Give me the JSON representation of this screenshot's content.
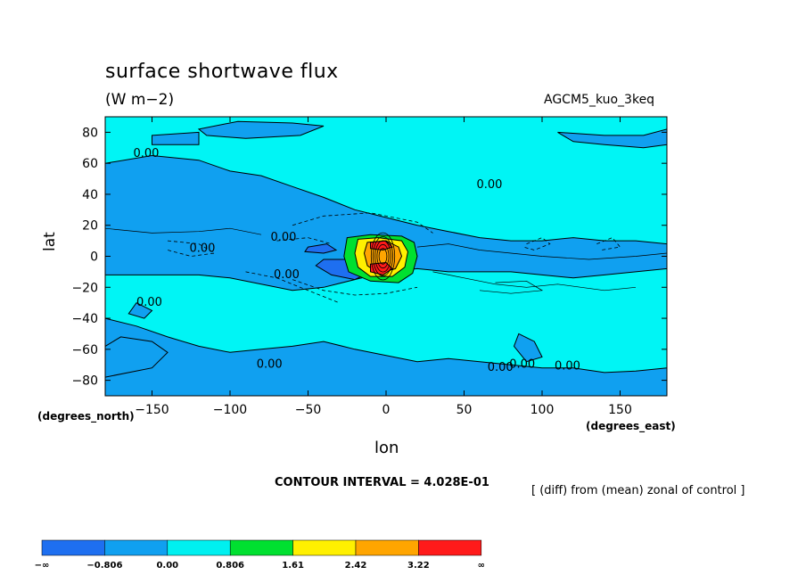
{
  "chart_data": {
    "type": "contour",
    "title": "surface shortwave flux",
    "units": "(W m−2)",
    "run_name": "AGCM5_kuo_3keq",
    "xlabel": "lon",
    "ylabel": "lat",
    "x_axis_note": "(degrees_east)",
    "y_axis_note": "(degrees_north)",
    "xlim": [
      -180,
      180
    ],
    "ylim": [
      -90,
      90
    ],
    "x_ticks": [
      -150,
      -100,
      -50,
      0,
      50,
      100,
      150
    ],
    "y_ticks": [
      -80,
      -60,
      -40,
      -20,
      0,
      20,
      40,
      60,
      80
    ],
    "contour_interval_text": "CONTOUR INTERVAL = 4.028E-01",
    "description_text": "[ (diff) from (mean) zonal of control ]",
    "contour_labels": [
      "0.00",
      "0.00",
      "0.00",
      "0.00",
      "0.00",
      "0.00",
      "0.00",
      "0.00",
      "0.00",
      "0.00"
    ],
    "colorbar": {
      "boundaries": [
        "−∞",
        "−0.806",
        "0.00",
        "0.806",
        "1.61",
        "2.42",
        "3.22",
        "∞"
      ],
      "colors": [
        "#1e6ff0",
        "#10a0f0",
        "#00f0f0",
        "#00e030",
        "#fff000",
        "#ffa500",
        "#ff1a1a"
      ]
    },
    "field_colors": {
      "background": "#00f5f5",
      "negative": "#10a0f0",
      "strong_negative": "#1e6ff0",
      "green": "#00e030",
      "yellow": "#fff000",
      "orange": "#ffa500",
      "red": "#ff1a1a"
    },
    "regions": [
      {
        "level": "negative",
        "points": [
          [
            -180,
            60
          ],
          [
            -150,
            65
          ],
          [
            -120,
            62
          ],
          [
            -100,
            55
          ],
          [
            -80,
            52
          ],
          [
            -60,
            45
          ],
          [
            -40,
            38
          ],
          [
            -20,
            30
          ],
          [
            0,
            25
          ],
          [
            20,
            20
          ],
          [
            40,
            16
          ],
          [
            60,
            12
          ],
          [
            80,
            10
          ],
          [
            100,
            10
          ],
          [
            120,
            12
          ],
          [
            140,
            10
          ],
          [
            160,
            10
          ],
          [
            180,
            8
          ],
          [
            180,
            -8
          ],
          [
            160,
            -10
          ],
          [
            140,
            -12
          ],
          [
            120,
            -14
          ],
          [
            100,
            -12
          ],
          [
            80,
            -10
          ],
          [
            60,
            -10
          ],
          [
            40,
            -10
          ],
          [
            20,
            -8
          ],
          [
            0,
            -10
          ],
          [
            -20,
            -15
          ],
          [
            -40,
            -20
          ],
          [
            -60,
            -22
          ],
          [
            -80,
            -18
          ],
          [
            -100,
            -14
          ],
          [
            -120,
            -12
          ],
          [
            -150,
            -12
          ],
          [
            -180,
            -12
          ]
        ]
      },
      {
        "level": "negative",
        "points": [
          [
            -180,
            -40
          ],
          [
            -160,
            -45
          ],
          [
            -140,
            -52
          ],
          [
            -120,
            -58
          ],
          [
            -100,
            -62
          ],
          [
            -80,
            -60
          ],
          [
            -60,
            -58
          ],
          [
            -40,
            -55
          ],
          [
            -20,
            -60
          ],
          [
            0,
            -64
          ],
          [
            20,
            -68
          ],
          [
            40,
            -66
          ],
          [
            60,
            -68
          ],
          [
            80,
            -70
          ],
          [
            100,
            -72
          ],
          [
            120,
            -72
          ],
          [
            140,
            -75
          ],
          [
            160,
            -74
          ],
          [
            180,
            -72
          ],
          [
            180,
            -90
          ],
          [
            -180,
            -90
          ]
        ]
      },
      {
        "level": "negative",
        "points": [
          [
            -180,
            -58
          ],
          [
            -170,
            -52
          ],
          [
            -150,
            -55
          ],
          [
            -140,
            -62
          ],
          [
            -150,
            -72
          ],
          [
            -180,
            -78
          ]
        ]
      },
      {
        "level": "negative",
        "points": [
          [
            -120,
            82
          ],
          [
            -95,
            87
          ],
          [
            -60,
            86
          ],
          [
            -40,
            84
          ],
          [
            -55,
            78
          ],
          [
            -90,
            76
          ],
          [
            -115,
            78
          ]
        ]
      },
      {
        "level": "negative",
        "points": [
          [
            110,
            80
          ],
          [
            140,
            78
          ],
          [
            165,
            78
          ],
          [
            180,
            82
          ],
          [
            180,
            72
          ],
          [
            165,
            70
          ],
          [
            140,
            72
          ],
          [
            120,
            74
          ]
        ]
      },
      {
        "level": "negative",
        "points": [
          [
            -150,
            78
          ],
          [
            -120,
            80
          ],
          [
            -120,
            72
          ],
          [
            -150,
            72
          ]
        ]
      },
      {
        "level": "negative",
        "points": [
          [
            85,
            -50
          ],
          [
            95,
            -55
          ],
          [
            100,
            -65
          ],
          [
            90,
            -68
          ],
          [
            82,
            -58
          ]
        ]
      },
      {
        "level": "negative",
        "points": [
          [
            -160,
            -30
          ],
          [
            -150,
            -35
          ],
          [
            -155,
            -40
          ],
          [
            -165,
            -37
          ]
        ]
      },
      {
        "level": "strong_negative",
        "points": [
          [
            -40,
            -2
          ],
          [
            -25,
            -2
          ],
          [
            -15,
            -4
          ],
          [
            -10,
            -10
          ],
          [
            -20,
            -15
          ],
          [
            -35,
            -12
          ],
          [
            -45,
            -6
          ]
        ]
      },
      {
        "level": "strong_negative",
        "points": [
          [
            -50,
            6
          ],
          [
            -38,
            8
          ],
          [
            -32,
            4
          ],
          [
            -40,
            2
          ],
          [
            -52,
            3
          ]
        ]
      },
      {
        "level": "green",
        "points": [
          [
            -25,
            12
          ],
          [
            -10,
            14
          ],
          [
            10,
            13
          ],
          [
            18,
            9
          ],
          [
            20,
            0
          ],
          [
            17,
            -11
          ],
          [
            8,
            -17
          ],
          [
            -10,
            -16
          ],
          [
            -24,
            -10
          ],
          [
            -27,
            0
          ]
        ]
      },
      {
        "level": "yellow",
        "points": [
          [
            -18,
            11
          ],
          [
            -5,
            12
          ],
          [
            10,
            10
          ],
          [
            14,
            3
          ],
          [
            12,
            -7
          ],
          [
            4,
            -13
          ],
          [
            -10,
            -13
          ],
          [
            -18,
            -7
          ],
          [
            -20,
            2
          ]
        ]
      },
      {
        "level": "orange",
        "points": [
          [
            -12,
            9
          ],
          [
            0,
            10
          ],
          [
            8,
            6
          ],
          [
            10,
            0
          ],
          [
            6,
            -8
          ],
          [
            -5,
            -11
          ],
          [
            -12,
            -6
          ],
          [
            -14,
            2
          ]
        ]
      },
      {
        "level": "red",
        "points": [
          [
            -10,
            9
          ],
          [
            0,
            10
          ],
          [
            4,
            6
          ],
          [
            -2,
            4
          ],
          [
            -10,
            5
          ]
        ]
      },
      {
        "level": "red",
        "points": [
          [
            -10,
            -5
          ],
          [
            0,
            -4
          ],
          [
            4,
            -8
          ],
          [
            -2,
            -12
          ],
          [
            -10,
            -10
          ]
        ]
      }
    ],
    "dashed_contours": [
      {
        "points": [
          [
            -60,
            20
          ],
          [
            -40,
            26
          ],
          [
            -10,
            28
          ],
          [
            20,
            22
          ],
          [
            30,
            15
          ]
        ]
      },
      {
        "points": [
          [
            -60,
            -15
          ],
          [
            -40,
            -22
          ],
          [
            -20,
            -25
          ],
          [
            0,
            -24
          ],
          [
            20,
            -20
          ]
        ]
      },
      {
        "points": [
          [
            -90,
            -10
          ],
          [
            -70,
            -14
          ],
          [
            -50,
            -22
          ],
          [
            -30,
            -30
          ]
        ]
      },
      {
        "points": [
          [
            -70,
            10
          ],
          [
            -50,
            12
          ],
          [
            -35,
            8
          ]
        ]
      },
      {
        "points": [
          [
            90,
            8
          ],
          [
            100,
            12
          ],
          [
            105,
            8
          ],
          [
            95,
            4
          ],
          [
            88,
            6
          ]
        ]
      },
      {
        "points": [
          [
            135,
            8
          ],
          [
            145,
            12
          ],
          [
            150,
            6
          ],
          [
            138,
            4
          ]
        ]
      },
      {
        "points": [
          [
            -140,
            10
          ],
          [
            -120,
            8
          ],
          [
            -110,
            2
          ],
          [
            -125,
            0
          ],
          [
            -140,
            4
          ]
        ]
      }
    ],
    "thin_contours": [
      {
        "points": [
          [
            20,
            6
          ],
          [
            40,
            8
          ],
          [
            60,
            4
          ],
          [
            80,
            2
          ],
          [
            100,
            0
          ],
          [
            130,
            -2
          ],
          [
            160,
            0
          ],
          [
            180,
            2
          ]
        ]
      },
      {
        "points": [
          [
            30,
            -10
          ],
          [
            50,
            -14
          ],
          [
            70,
            -18
          ],
          [
            90,
            -20
          ],
          [
            110,
            -18
          ],
          [
            140,
            -22
          ],
          [
            160,
            -20
          ]
        ]
      },
      {
        "points": [
          [
            -180,
            18
          ],
          [
            -150,
            15
          ],
          [
            -120,
            16
          ],
          [
            -100,
            18
          ],
          [
            -80,
            14
          ]
        ]
      },
      {
        "points": [
          [
            60,
            -22
          ],
          [
            80,
            -24
          ],
          [
            100,
            -22
          ],
          [
            90,
            -16
          ],
          [
            70,
            -17
          ]
        ]
      }
    ],
    "label_positions": [
      [
        -162,
        64
      ],
      [
        -126,
        3
      ],
      [
        -74,
        10
      ],
      [
        -72,
        -14
      ],
      [
        -83,
        -72
      ],
      [
        -160,
        -32
      ],
      [
        58,
        44
      ],
      [
        65,
        -74
      ],
      [
        108,
        -73
      ],
      [
        79,
        -72
      ]
    ]
  }
}
